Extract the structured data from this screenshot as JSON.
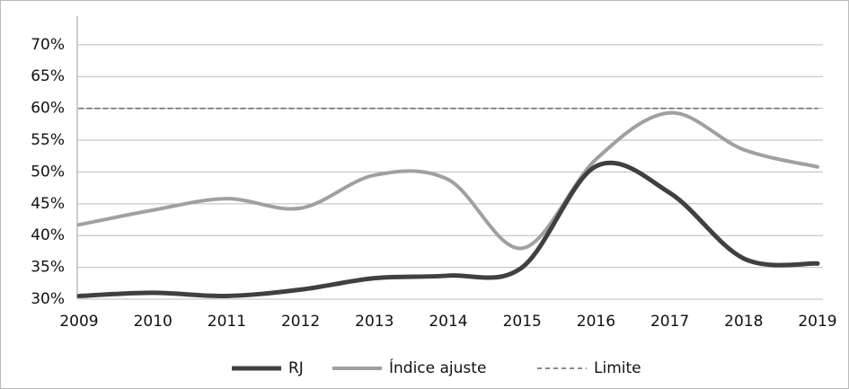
{
  "chart_data": {
    "type": "line",
    "categories": [
      "2009",
      "2010",
      "2011",
      "2012",
      "2013",
      "2014",
      "2015",
      "2016",
      "2017",
      "2018",
      "2019"
    ],
    "series": [
      {
        "name": "RJ",
        "color": "#404040",
        "width": 5,
        "dash": false,
        "values": [
          30.5,
          31,
          30.5,
          31.5,
          33.3,
          33.7,
          35,
          50.9,
          46.7,
          36.4,
          35.6
        ]
      },
      {
        "name": "Índice ajuste",
        "color": "#a0a0a0",
        "width": 4,
        "dash": false,
        "values": [
          41.7,
          44,
          45.8,
          44.3,
          49.5,
          48.8,
          38,
          52,
          59.3,
          53.5,
          50.8
        ]
      },
      {
        "name": "Limite",
        "color": "#666666",
        "width": 1.5,
        "dash": true,
        "values": [
          60,
          60,
          60,
          60,
          60,
          60,
          60,
          60,
          60,
          60,
          60
        ]
      }
    ],
    "ylim": [
      30,
      74.5
    ],
    "yticks": [
      {
        "value": 30,
        "label": "30%"
      },
      {
        "value": 35,
        "label": "35%"
      },
      {
        "value": 40,
        "label": "40%"
      },
      {
        "value": 45,
        "label": "45%"
      },
      {
        "value": 50,
        "label": "50%"
      },
      {
        "value": 55,
        "label": "55%"
      },
      {
        "value": 60,
        "label": "60%"
      },
      {
        "value": 65,
        "label": "65%"
      },
      {
        "value": 70,
        "label": "70%"
      }
    ],
    "grid": true,
    "smooth": true,
    "legend": "bottom"
  }
}
